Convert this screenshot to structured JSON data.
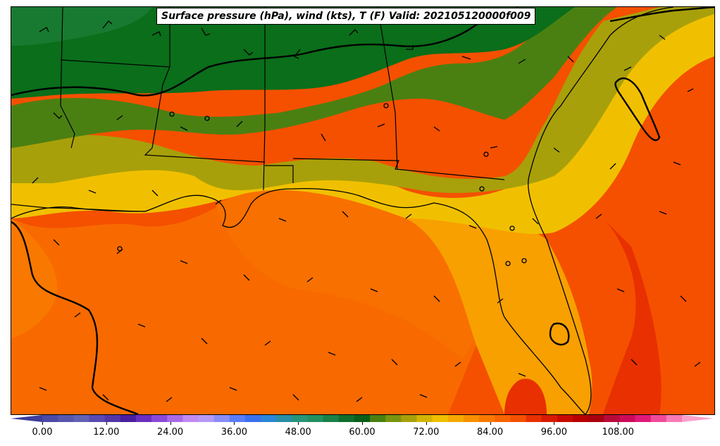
{
  "title": "Surface pressure (hPa), wind (kts), T (F) Valid: 202105120000f009",
  "colorbar": {
    "min": -6,
    "max": 126,
    "tick_labels": [
      "0.00",
      "12.00",
      "24.00",
      "36.00",
      "48.00",
      "60.00",
      "72.00",
      "84.00",
      "96.00",
      "108.00"
    ],
    "tick_values": [
      0,
      12,
      24,
      36,
      48,
      60,
      72,
      84,
      96,
      108
    ],
    "colors": [
      "#3d3d9c",
      "#4a4aa6",
      "#5656ae",
      "#6262b4",
      "#5a4ab0",
      "#5236a8",
      "#4a1e9e",
      "#6a2ec0",
      "#8a4ad8",
      "#a86ae6",
      "#c08af0",
      "#b49af4",
      "#8a8cf8",
      "#5a7cf6",
      "#3a70ee",
      "#2a86d6",
      "#2a8ea6",
      "#2a9478",
      "#229060",
      "#1a8048",
      "#0f6e2e",
      "#0a5e1a",
      "#4a8012",
      "#7a9410",
      "#a8a00a",
      "#d2b406",
      "#f0c000",
      "#f4a800",
      "#f89000",
      "#fa7800",
      "#f86400",
      "#f45000",
      "#e83000",
      "#d81a00",
      "#c80a00",
      "#b80000",
      "#a80010",
      "#b80a3a",
      "#cc0a5a",
      "#e01a7a",
      "#f04a9a",
      "#f87ab6",
      "#fca0cc"
    ]
  },
  "colors": {
    "cold_green": "#0a6e1a",
    "mid_green": "#4a8012",
    "olive": "#a8a00a",
    "yellow": "#f0c000",
    "light_orange": "#f8a000",
    "orange": "#f87000",
    "deep_orange": "#f45000",
    "red_orange": "#e83000"
  }
}
